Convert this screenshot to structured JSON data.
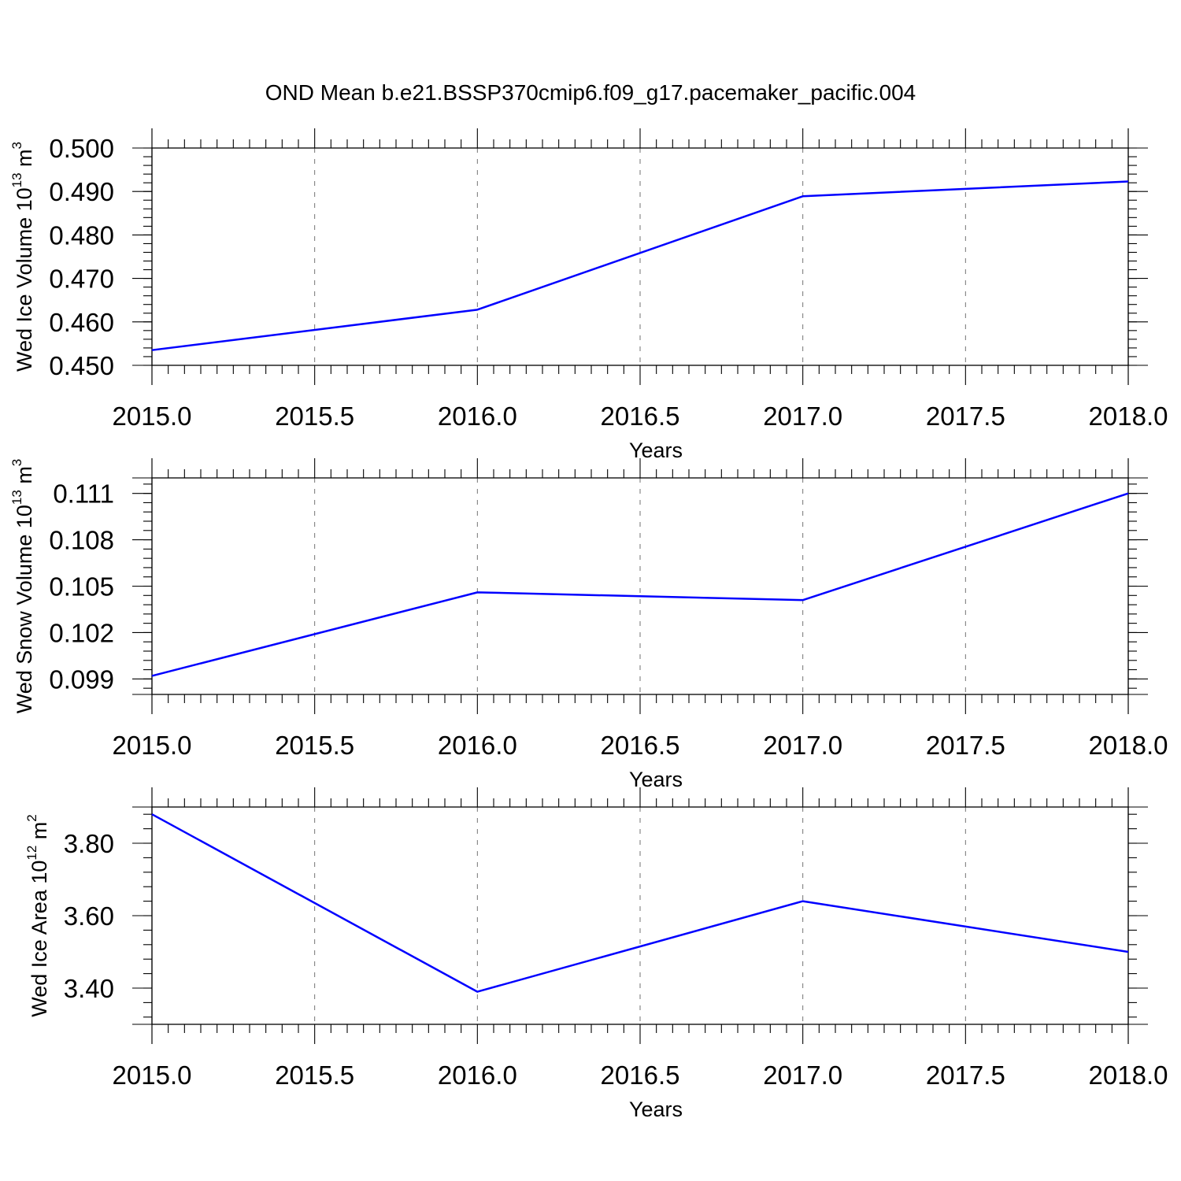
{
  "title": "OND Mean b.e21.BSSP370cmip6.f09_g17.pacemaker_pacific.004",
  "line_color": "#0000ff",
  "chart_data": [
    {
      "type": "line",
      "xlabel": "Years",
      "ylabel": {
        "text": "Wed Ice Volume 10",
        "exp": "13",
        "unit_text": " m",
        "unit_exp": "3"
      },
      "x": [
        2015,
        2016,
        2017,
        2018
      ],
      "values": [
        0.4535,
        0.4628,
        0.4889,
        0.4923
      ],
      "xlim": [
        2015,
        2018
      ],
      "ylim": [
        0.45,
        0.5
      ],
      "xticks": [
        2015.0,
        2015.5,
        2016.0,
        2016.5,
        2017.0,
        2017.5,
        2018.0
      ],
      "xtick_labels": [
        "2015.0",
        "2015.5",
        "2016.0",
        "2016.5",
        "2017.0",
        "2017.5",
        "2018.0"
      ],
      "yticks": [
        0.45,
        0.46,
        0.47,
        0.48,
        0.49,
        0.5
      ],
      "ytick_labels": [
        "0.450",
        "0.460",
        "0.470",
        "0.480",
        "0.490",
        "0.500"
      ],
      "grid": "vertical dashed"
    },
    {
      "type": "line",
      "xlabel": "Years",
      "ylabel": {
        "text": "Wed Snow Volume 10",
        "exp": "13",
        "unit_text": " m",
        "unit_exp": "3"
      },
      "x": [
        2015,
        2016,
        2017,
        2018
      ],
      "values": [
        0.0992,
        0.1046,
        0.1041,
        0.111
      ],
      "xlim": [
        2015,
        2018
      ],
      "ylim": [
        0.098,
        0.112
      ],
      "xticks": [
        2015.0,
        2015.5,
        2016.0,
        2016.5,
        2017.0,
        2017.5,
        2018.0
      ],
      "xtick_labels": [
        "2015.0",
        "2015.5",
        "2016.0",
        "2016.5",
        "2017.0",
        "2017.5",
        "2018.0"
      ],
      "yticks": [
        0.099,
        0.102,
        0.105,
        0.108,
        0.111
      ],
      "ytick_labels": [
        "0.099",
        "0.102",
        "0.105",
        "0.108",
        "0.111"
      ],
      "grid": "vertical dashed"
    },
    {
      "type": "line",
      "xlabel": "Years",
      "ylabel": {
        "text": "Wed Ice Area 10",
        "exp": "12",
        "unit_text": " m",
        "unit_exp": "2"
      },
      "x": [
        2015,
        2016,
        2017,
        2018
      ],
      "values": [
        3.88,
        3.39,
        3.64,
        3.5
      ],
      "xlim": [
        2015,
        2018
      ],
      "ylim": [
        3.3,
        3.9
      ],
      "xticks": [
        2015.0,
        2015.5,
        2016.0,
        2016.5,
        2017.0,
        2017.5,
        2018.0
      ],
      "xtick_labels": [
        "2015.0",
        "2015.5",
        "2016.0",
        "2016.5",
        "2017.0",
        "2017.5",
        "2018.0"
      ],
      "yticks": [
        3.4,
        3.6,
        3.8
      ],
      "ytick_labels": [
        "3.40",
        "3.60",
        "3.80"
      ],
      "grid": "vertical dashed"
    }
  ]
}
